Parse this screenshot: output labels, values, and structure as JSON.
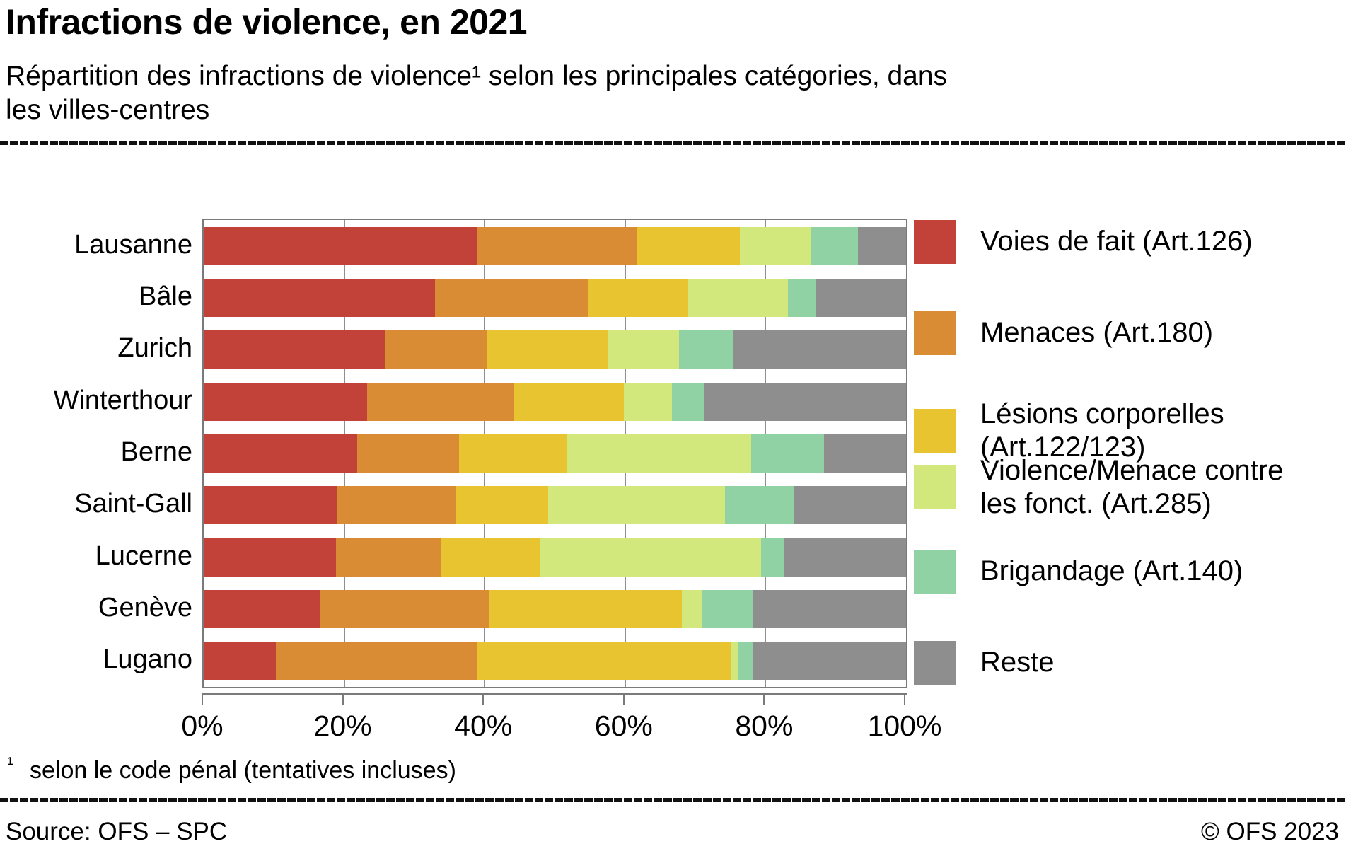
{
  "header": {
    "title": "Infractions de violence, en 2021",
    "subtitle": "Répartition des infractions de violence¹ selon les principales catégories, dans les villes-centres"
  },
  "chart_data": {
    "type": "bar",
    "stacked": true,
    "orientation": "horizontal",
    "title": "Infractions de violence, en 2021",
    "categories": [
      "Lausanne",
      "Bâle",
      "Zurich",
      "Winterthour",
      "Berne",
      "Saint-Gall",
      "Lucerne",
      "Genève",
      "Lugano"
    ],
    "series": [
      {
        "name": "Voies de fait (Art.126)",
        "color": "#c2423a",
        "values": [
          39.0,
          32.9,
          25.8,
          23.3,
          21.9,
          19.0,
          18.8,
          16.6,
          10.3
        ]
      },
      {
        "name": "Menaces (Art.180)",
        "color": "#d98c33",
        "values": [
          22.7,
          21.8,
          14.6,
          20.8,
          14.5,
          17.0,
          14.9,
          24.1,
          28.7
        ]
      },
      {
        "name": "Lésions corporelles (Art.122/123)",
        "color": "#e9c431",
        "values": [
          14.6,
          14.3,
          17.2,
          15.7,
          15.4,
          13.0,
          14.1,
          27.4,
          36.1
        ]
      },
      {
        "name": "Violence/Menace contre les fonct. (Art.285)",
        "color": "#d2e87c",
        "values": [
          10.1,
          14.2,
          10.1,
          6.9,
          26.1,
          25.2,
          31.6,
          2.8,
          0.9
        ]
      },
      {
        "name": "Brigandage (Art.140)",
        "color": "#90d2a4",
        "values": [
          6.8,
          4.0,
          7.7,
          4.5,
          10.4,
          9.9,
          3.2,
          7.4,
          2.3
        ]
      },
      {
        "name": "Reste",
        "color": "#8e8e8e",
        "values": [
          6.8,
          12.8,
          24.6,
          28.8,
          11.7,
          15.9,
          17.4,
          21.7,
          21.7
        ]
      }
    ],
    "x_ticks": [
      "0%",
      "20%",
      "40%",
      "60%",
      "80%",
      "100%"
    ],
    "xlim": [
      0,
      100
    ],
    "grid": true,
    "gridline_positions": [
      20,
      40,
      60,
      80
    ],
    "legend_position": "right"
  },
  "footnote": {
    "marker": "¹",
    "text": "selon le code pénal (tentatives incluses)"
  },
  "footer": {
    "source": "Source: OFS – SPC",
    "copyright": "© OFS 2023"
  }
}
